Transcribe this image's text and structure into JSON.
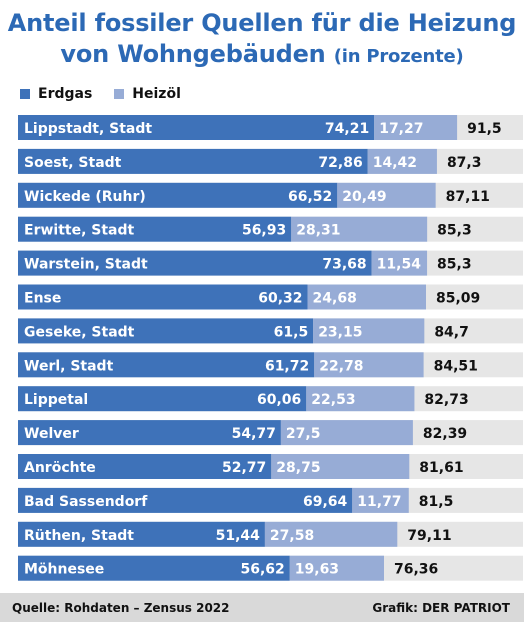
{
  "header": {
    "title_line1": "Anteil fossiler Quellen für die Heizung",
    "title_line2": "von Wohngebäuden",
    "title_unit": "(in Prozente)"
  },
  "legend": {
    "erdgas": "Erdgas",
    "heizoel": "Heizöl"
  },
  "colors": {
    "erdgas": "#3e72b9",
    "heizoel": "#97acd6",
    "row_background": "#e6e6e6"
  },
  "chart_data": {
    "type": "bar",
    "orientation": "horizontal",
    "stacked": true,
    "categories": [
      "Lippstadt, Stadt",
      "Soest, Stadt",
      "Wickede (Ruhr)",
      "Erwitte, Stadt",
      "Warstein, Stadt",
      "Ense",
      "Geseke, Stadt",
      "Werl, Stadt",
      "Lippetal",
      "Welver",
      "Anröchte",
      "Bad Sassendorf",
      "Rüthen, Stadt",
      "Möhnesee"
    ],
    "category_labels": [
      "Lippstadt, Stadt",
      "Soest, Stadt",
      "Wickede (Ruhr)",
      "Erwitte, Stadt",
      "Warstein, Stadt",
      "Ense",
      "Geseke, Stadt",
      "Werl, Stadt",
      "Lippetal",
      "Welver",
      "Anröchte",
      "Bad Sassendorf",
      "Rüthen, Stadt",
      "Möhnesee"
    ],
    "series": [
      {
        "name": "Erdgas",
        "values": [
          74.21,
          72.86,
          66.52,
          56.93,
          73.68,
          60.32,
          61.5,
          61.72,
          60.06,
          54.77,
          52.77,
          69.64,
          51.44,
          56.62
        ],
        "labels": [
          "74,21",
          "72,86",
          "66,52",
          "56,93",
          "73,68",
          "60,32",
          "61,5",
          "61,72",
          "60,06",
          "54,77",
          "52,77",
          "69,64",
          "51,44",
          "56,62"
        ]
      },
      {
        "name": "Heizöl",
        "values": [
          17.27,
          14.42,
          20.49,
          28.31,
          11.54,
          24.68,
          23.15,
          22.78,
          22.53,
          27.5,
          28.75,
          11.77,
          27.58,
          19.63
        ],
        "labels": [
          "17,27",
          "14,42",
          "20,49",
          "28,31",
          "11,54",
          "24,68",
          "23,15",
          "22,78",
          "22,53",
          "27,5",
          "28,75",
          "11,77",
          "27,58",
          "19,63"
        ]
      }
    ],
    "totals": [
      91.5,
      87.3,
      87.11,
      85.3,
      85.3,
      85.09,
      84.7,
      84.51,
      82.73,
      82.39,
      81.61,
      81.5,
      79.11,
      76.36
    ],
    "total_labels": [
      "91,5",
      "87,3",
      "87,11",
      "85,3",
      "85,3",
      "85,09",
      "84,7",
      "84,51",
      "82,73",
      "82,39",
      "81,61",
      "81,5",
      "79,11",
      "76,36"
    ],
    "title": "Anteil fossiler Quellen für die Heizung von Wohngebäuden (in Prozente)",
    "xlabel": "",
    "ylabel": "",
    "xlim": [
      0,
      100
    ],
    "legend_position": "top-left",
    "grid": false
  },
  "footer": {
    "source": "Quelle: Rohdaten – Zensus 2022",
    "credit": "Grafik: DER PATRIOT"
  }
}
